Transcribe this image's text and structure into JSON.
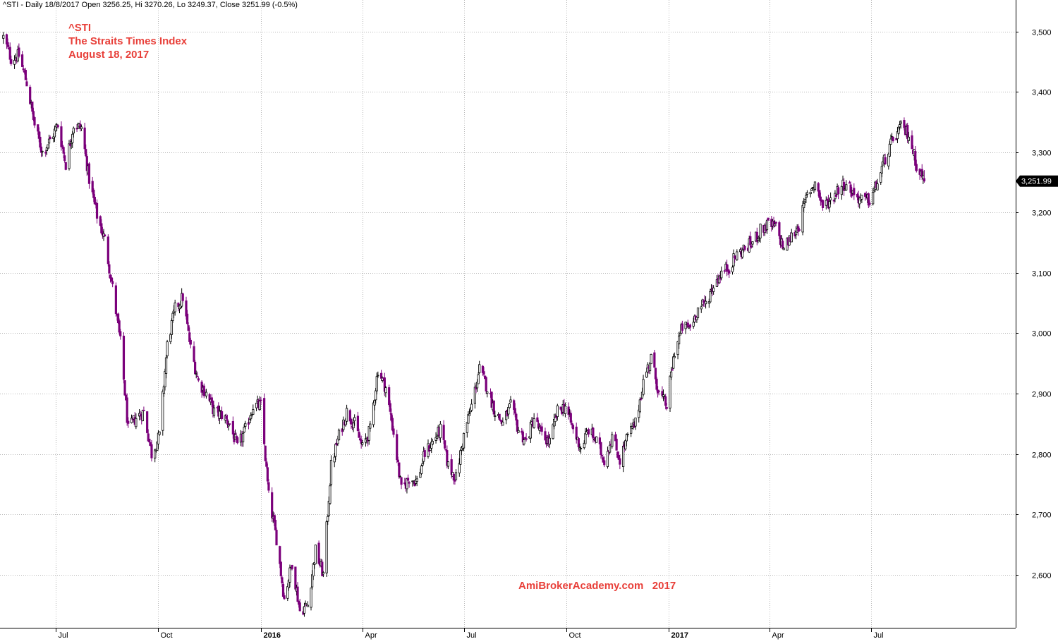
{
  "header": {
    "info_line": "^STI - Daily 18/8/2017 Open 3256.25, Hi 3270.26, Lo 3249.37, Close 3251.99 (-0.5%)"
  },
  "title_block": {
    "symbol": "^STI",
    "name": "The Straits Times Index",
    "date": "August 18, 2017"
  },
  "watermark": "AmiBrokerAcademy.com   2017",
  "colors": {
    "up_candle": "#000000",
    "down_candle": "#7b007b",
    "grid": "#b8b8b8",
    "title_text": "#e8403a",
    "last_price_tag": "#000000"
  },
  "chart_data": {
    "type": "candlestick",
    "title": "^STI",
    "subtitle": "The Straits Times Index",
    "y_axis_side": "right",
    "ylim": [
      2512,
      3552
    ],
    "yticks": [
      2600,
      2700,
      2800,
      2900,
      3000,
      3100,
      3200,
      3300,
      3400,
      3500
    ],
    "ytick_labels": [
      "2,600",
      "2,700",
      "2,800",
      "2,900",
      "3,000",
      "3,100",
      "3,200",
      "3,300",
      "3,400",
      "3,500"
    ],
    "xlim": [
      "2015-05-12",
      "2017-11-08"
    ],
    "xticks": [
      {
        "date": "2015-07-01",
        "label": "Jul",
        "bold": false
      },
      {
        "date": "2015-10-01",
        "label": "Oct",
        "bold": false
      },
      {
        "date": "2016-01-01",
        "label": "2016",
        "bold": true
      },
      {
        "date": "2016-04-01",
        "label": "Apr",
        "bold": false
      },
      {
        "date": "2016-07-01",
        "label": "Jul",
        "bold": false
      },
      {
        "date": "2016-10-01",
        "label": "Oct",
        "bold": false
      },
      {
        "date": "2017-01-01",
        "label": "2017",
        "bold": true
      },
      {
        "date": "2017-04-01",
        "label": "Apr",
        "bold": false
      },
      {
        "date": "2017-07-01",
        "label": "Jul",
        "bold": false
      }
    ],
    "grid": true,
    "last_close": 3251.99,
    "last_close_label": "3,251.99",
    "last_bar": {
      "date": "2017-08-18",
      "open": 3256.25,
      "high": 3270.26,
      "low": 3249.37,
      "close": 3251.99
    },
    "close_path": [
      [
        "2015-05-15",
        3490
      ],
      [
        "2015-05-22",
        3455
      ],
      [
        "2015-05-29",
        3460
      ],
      [
        "2015-06-05",
        3415
      ],
      [
        "2015-06-12",
        3345
      ],
      [
        "2015-06-19",
        3300
      ],
      [
        "2015-06-26",
        3320
      ],
      [
        "2015-07-03",
        3345
      ],
      [
        "2015-07-10",
        3280
      ],
      [
        "2015-07-17",
        3345
      ],
      [
        "2015-07-24",
        3340
      ],
      [
        "2015-07-31",
        3255
      ],
      [
        "2015-08-07",
        3195
      ],
      [
        "2015-08-14",
        3155
      ],
      [
        "2015-08-21",
        3075
      ],
      [
        "2015-08-28",
        2985
      ],
      [
        "2015-09-04",
        2840
      ],
      [
        "2015-09-11",
        2860
      ],
      [
        "2015-09-18",
        2870
      ],
      [
        "2015-09-25",
        2800
      ],
      [
        "2015-10-02",
        2830
      ],
      [
        "2015-10-09",
        2980
      ],
      [
        "2015-10-16",
        3040
      ],
      [
        "2015-10-23",
        3060
      ],
      [
        "2015-10-30",
        2975
      ],
      [
        "2015-11-06",
        2920
      ],
      [
        "2015-11-13",
        2900
      ],
      [
        "2015-11-20",
        2870
      ],
      [
        "2015-11-27",
        2865
      ],
      [
        "2015-12-04",
        2850
      ],
      [
        "2015-12-11",
        2810
      ],
      [
        "2015-12-18",
        2840
      ],
      [
        "2015-12-25",
        2880
      ],
      [
        "2016-01-01",
        2880
      ],
      [
        "2016-01-08",
        2730
      ],
      [
        "2016-01-15",
        2660
      ],
      [
        "2016-01-22",
        2560
      ],
      [
        "2016-01-29",
        2620
      ],
      [
        "2016-02-05",
        2540
      ],
      [
        "2016-02-12",
        2550
      ],
      [
        "2016-02-19",
        2640
      ],
      [
        "2016-02-26",
        2600
      ],
      [
        "2016-03-04",
        2780
      ],
      [
        "2016-03-11",
        2830
      ],
      [
        "2016-03-18",
        2870
      ],
      [
        "2016-03-25",
        2850
      ],
      [
        "2016-04-01",
        2810
      ],
      [
        "2016-04-08",
        2840
      ],
      [
        "2016-04-15",
        2940
      ],
      [
        "2016-04-22",
        2910
      ],
      [
        "2016-04-29",
        2835
      ],
      [
        "2016-05-06",
        2740
      ],
      [
        "2016-05-13",
        2760
      ],
      [
        "2016-05-20",
        2755
      ],
      [
        "2016-05-27",
        2800
      ],
      [
        "2016-06-03",
        2820
      ],
      [
        "2016-06-10",
        2840
      ],
      [
        "2016-06-17",
        2780
      ],
      [
        "2016-06-24",
        2760
      ],
      [
        "2016-07-01",
        2830
      ],
      [
        "2016-07-08",
        2880
      ],
      [
        "2016-07-15",
        2940
      ],
      [
        "2016-07-22",
        2910
      ],
      [
        "2016-07-29",
        2870
      ],
      [
        "2016-08-05",
        2850
      ],
      [
        "2016-08-12",
        2880
      ],
      [
        "2016-08-19",
        2840
      ],
      [
        "2016-08-26",
        2820
      ],
      [
        "2016-09-02",
        2860
      ],
      [
        "2016-09-09",
        2830
      ],
      [
        "2016-09-16",
        2820
      ],
      [
        "2016-09-23",
        2870
      ],
      [
        "2016-09-30",
        2880
      ],
      [
        "2016-10-07",
        2840
      ],
      [
        "2016-10-14",
        2810
      ],
      [
        "2016-10-21",
        2840
      ],
      [
        "2016-10-28",
        2820
      ],
      [
        "2016-11-04",
        2790
      ],
      [
        "2016-11-11",
        2830
      ],
      [
        "2016-11-18",
        2790
      ],
      [
        "2016-11-25",
        2830
      ],
      [
        "2016-12-02",
        2850
      ],
      [
        "2016-12-09",
        2920
      ],
      [
        "2016-12-16",
        2960
      ],
      [
        "2016-12-23",
        2900
      ],
      [
        "2016-12-30",
        2880
      ],
      [
        "2017-01-06",
        2970
      ],
      [
        "2017-01-13",
        3010
      ],
      [
        "2017-01-20",
        3010
      ],
      [
        "2017-01-27",
        3040
      ],
      [
        "2017-02-03",
        3050
      ],
      [
        "2017-02-10",
        3080
      ],
      [
        "2017-02-17",
        3100
      ],
      [
        "2017-02-24",
        3110
      ],
      [
        "2017-03-03",
        3130
      ],
      [
        "2017-03-10",
        3140
      ],
      [
        "2017-03-17",
        3150
      ],
      [
        "2017-03-24",
        3170
      ],
      [
        "2017-03-31",
        3180
      ],
      [
        "2017-04-07",
        3175
      ],
      [
        "2017-04-14",
        3140
      ],
      [
        "2017-04-21",
        3160
      ],
      [
        "2017-04-28",
        3180
      ],
      [
        "2017-05-05",
        3230
      ],
      [
        "2017-05-12",
        3250
      ],
      [
        "2017-05-19",
        3210
      ],
      [
        "2017-05-26",
        3220
      ],
      [
        "2017-06-02",
        3240
      ],
      [
        "2017-06-09",
        3250
      ],
      [
        "2017-06-16",
        3230
      ],
      [
        "2017-06-23",
        3220
      ],
      [
        "2017-06-30",
        3220
      ],
      [
        "2017-07-07",
        3250
      ],
      [
        "2017-07-14",
        3290
      ],
      [
        "2017-07-21",
        3320
      ],
      [
        "2017-07-28",
        3340
      ],
      [
        "2017-08-04",
        3330
      ],
      [
        "2017-08-11",
        3280
      ],
      [
        "2017-08-18",
        3251.99
      ]
    ]
  }
}
